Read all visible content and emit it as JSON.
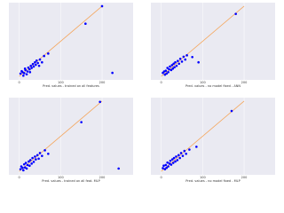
{
  "chart_data": [
    {
      "type": "scatter",
      "xlabel": "Pred. values - trained on all features",
      "color": "#0000ff",
      "x": [
        3,
        6,
        8,
        10,
        12,
        14,
        15,
        18,
        20,
        22,
        25,
        26,
        28,
        30,
        33,
        35,
        38,
        40,
        42,
        45,
        48,
        50,
        55,
        60,
        70,
        160,
        200,
        225
      ],
      "y": [
        8,
        15,
        12,
        2,
        9,
        22,
        18,
        6,
        14,
        25,
        20,
        12,
        30,
        24,
        35,
        28,
        40,
        33,
        45,
        38,
        30,
        48,
        40,
        58,
        65,
        150,
        200,
        10
      ],
      "line": {
        "x": [
          0,
          200
        ],
        "y": [
          0,
          200
        ],
        "color": "#f5a55a"
      },
      "xlim": [
        -25,
        275
      ],
      "ylim": [
        -10,
        210
      ],
      "xticks": [
        0,
        100,
        200
      ],
      "grid": true
    },
    {
      "type": "scatter",
      "xlabel": "Pred. values - no model fixed - ANN",
      "color": "#0000ff",
      "x": [
        4,
        7,
        9,
        11,
        13,
        15,
        17,
        19,
        21,
        24,
        26,
        28,
        30,
        32,
        34,
        37,
        40,
        43,
        46,
        50,
        54,
        58,
        62,
        75,
        90,
        180
      ],
      "y": [
        10,
        14,
        5,
        16,
        8,
        24,
        12,
        20,
        28,
        18,
        32,
        22,
        36,
        26,
        40,
        30,
        44,
        36,
        50,
        42,
        56,
        48,
        60,
        55,
        40,
        178
      ],
      "line": {
        "x": [
          0,
          200
        ],
        "y": [
          0,
          200
        ],
        "color": "#f5a55a"
      },
      "xlim": [
        -25,
        275
      ],
      "ylim": [
        -10,
        210
      ],
      "xticks": [
        0,
        100,
        200
      ],
      "grid": true
    },
    {
      "type": "scatter",
      "xlabel": "Pred. values - trained on all feat. MLP",
      "color": "#0000ff",
      "x": [
        3,
        5,
        8,
        10,
        12,
        14,
        16,
        18,
        20,
        23,
        25,
        27,
        30,
        32,
        35,
        38,
        40,
        44,
        47,
        50,
        55,
        62,
        70,
        150,
        195,
        240
      ],
      "y": [
        6,
        14,
        10,
        3,
        20,
        11,
        24,
        8,
        18,
        28,
        16,
        32,
        22,
        38,
        27,
        42,
        34,
        46,
        36,
        52,
        44,
        60,
        50,
        140,
        198,
        8
      ],
      "line": {
        "x": [
          0,
          200
        ],
        "y": [
          0,
          200
        ],
        "color": "#f5a55a"
      },
      "xlim": [
        -25,
        275
      ],
      "ylim": [
        -10,
        210
      ],
      "xticks": [
        0,
        100,
        200
      ],
      "grid": true
    },
    {
      "type": "scatter",
      "xlabel": "Pred. values - no model fixed - MLP",
      "color": "#0000ff",
      "x": [
        4,
        6,
        9,
        11,
        13,
        15,
        17,
        20,
        22,
        24,
        27,
        29,
        31,
        34,
        36,
        39,
        42,
        45,
        48,
        52,
        56,
        60,
        68,
        85,
        170
      ],
      "y": [
        9,
        16,
        6,
        18,
        10,
        25,
        14,
        22,
        30,
        19,
        34,
        24,
        38,
        28,
        42,
        32,
        46,
        38,
        52,
        44,
        58,
        50,
        62,
        70,
        172
      ],
      "line": {
        "x": [
          0,
          200
        ],
        "y": [
          0,
          200
        ],
        "color": "#f5a55a"
      },
      "xlim": [
        -25,
        275
      ],
      "ylim": [
        -10,
        210
      ],
      "xticks": [
        0,
        100,
        200
      ],
      "grid": true
    }
  ]
}
